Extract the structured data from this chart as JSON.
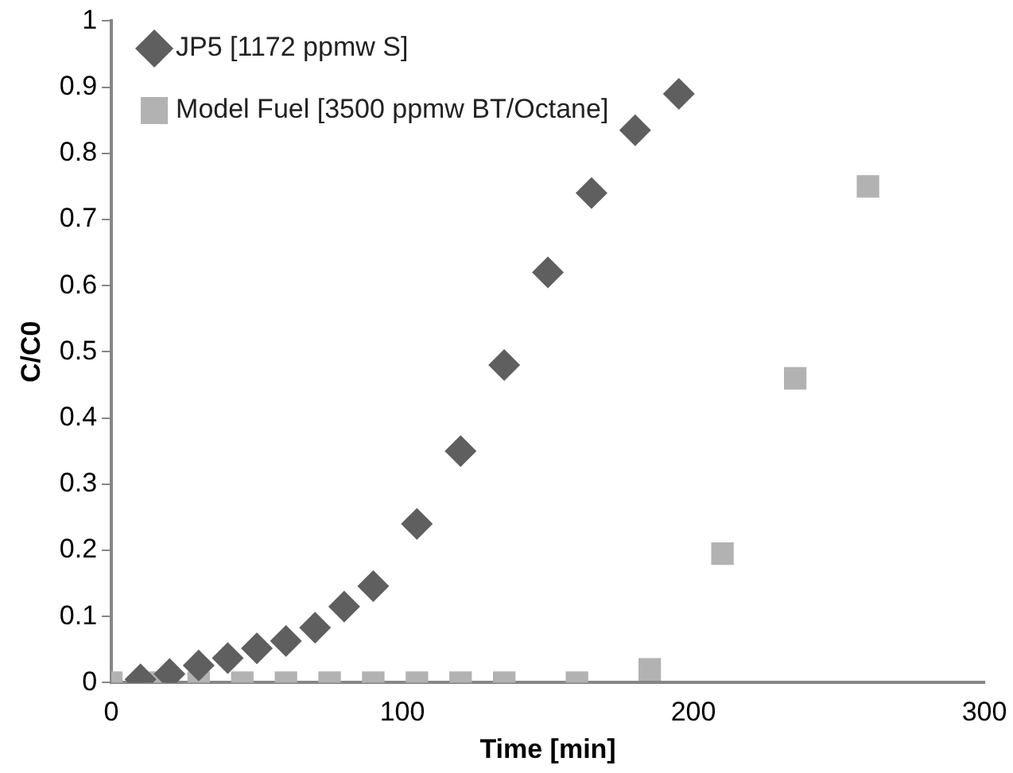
{
  "chart_data": {
    "type": "scatter",
    "xlabel": "Time [min]",
    "ylabel": "C/C0",
    "xlim": [
      0,
      300
    ],
    "xticks": [
      0,
      100,
      200,
      300
    ],
    "ylim": [
      0,
      1
    ],
    "yticks": [
      0,
      0.1,
      0.2,
      0.3,
      0.4,
      0.5,
      0.6,
      0.7,
      0.8,
      0.9,
      1
    ],
    "grid": false,
    "legend": "top left",
    "series": [
      {
        "name": "JP5 [1172 ppmw S]",
        "color": "#5f5f5f",
        "marker": "diamond",
        "x": [
          10,
          20,
          30,
          40,
          50,
          60,
          70,
          80,
          90,
          105,
          120,
          135,
          150,
          165,
          180,
          195
        ],
        "values": [
          0.005,
          0.013,
          0.026,
          0.037,
          0.052,
          0.063,
          0.083,
          0.115,
          0.146,
          0.24,
          0.35,
          0.48,
          0.62,
          0.74,
          0.835,
          0.89
        ]
      },
      {
        "name": "Model Fuel [3500 ppmw BT/Octane]",
        "color": "#b2b2b2",
        "marker": "square",
        "x": [
          0,
          15,
          30,
          45,
          60,
          75,
          90,
          105,
          120,
          135,
          160,
          185,
          210,
          235,
          260
        ],
        "values": [
          0,
          0,
          0,
          0,
          0,
          0,
          0,
          0,
          0,
          0,
          0,
          0.02,
          0.195,
          0.46,
          0.75
        ]
      }
    ]
  }
}
